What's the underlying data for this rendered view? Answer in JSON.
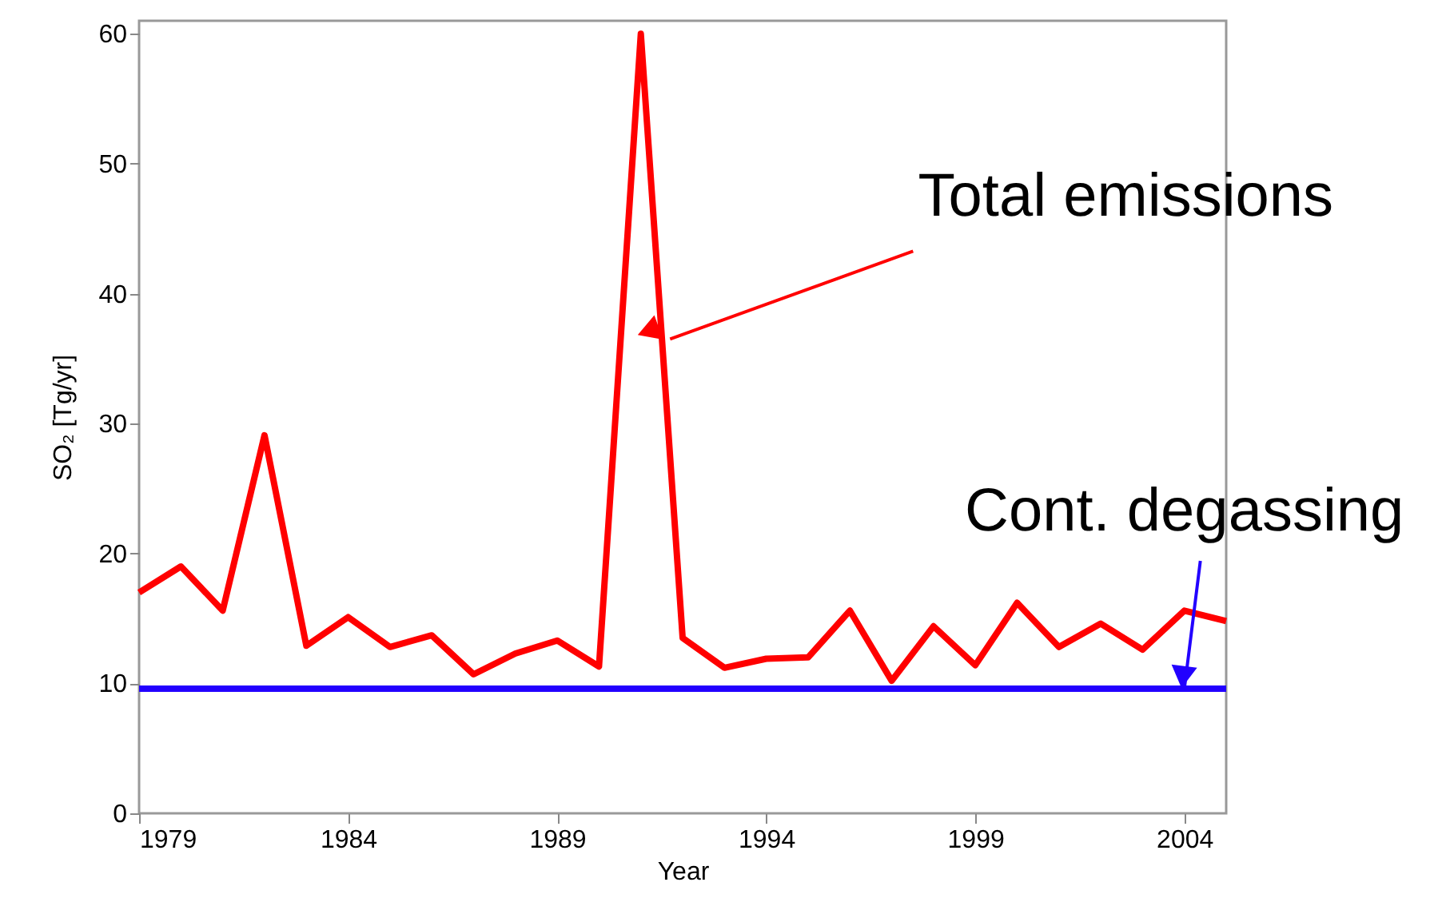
{
  "chart_data": {
    "type": "line",
    "xlabel": "Year",
    "ylabel": "SO₂ [Tg/yr]",
    "x": [
      1979,
      1980,
      1981,
      1982,
      1983,
      1984,
      1985,
      1986,
      1987,
      1988,
      1989,
      1990,
      1991,
      1992,
      1993,
      1994,
      1995,
      1996,
      1997,
      1998,
      1999,
      2000,
      2001,
      2002,
      2003,
      2004,
      2005
    ],
    "series": [
      {
        "color": "#ff0000",
        "values": [
          17.0,
          19.0,
          15.6,
          29.1,
          12.9,
          15.1,
          12.8,
          13.7,
          10.7,
          12.3,
          13.3,
          11.3,
          60.0,
          13.5,
          11.2,
          11.9,
          12.0,
          15.6,
          10.2,
          14.4,
          11.4,
          16.2,
          12.8,
          14.6,
          12.6,
          15.6,
          14.8
        ]
      },
      {
        "color": "#2200ff",
        "x": [
          1979,
          2005
        ],
        "values": [
          9.6,
          9.6
        ]
      }
    ],
    "xlim": [
      1979,
      2005
    ],
    "xticks": [
      1979,
      1984,
      1989,
      1994,
      1999,
      2004
    ],
    "ylim": [
      0,
      61
    ],
    "yticks": [
      0,
      10,
      20,
      30,
      40,
      50,
      60
    ],
    "grid": false,
    "marker": "none",
    "line_style": "solid",
    "annotations": [
      {
        "text": "Total emissions",
        "x": 1991.7,
        "y": 36.5
      },
      {
        "text": "Cont. degassing",
        "x": 2004,
        "y": 9.6
      }
    ]
  }
}
